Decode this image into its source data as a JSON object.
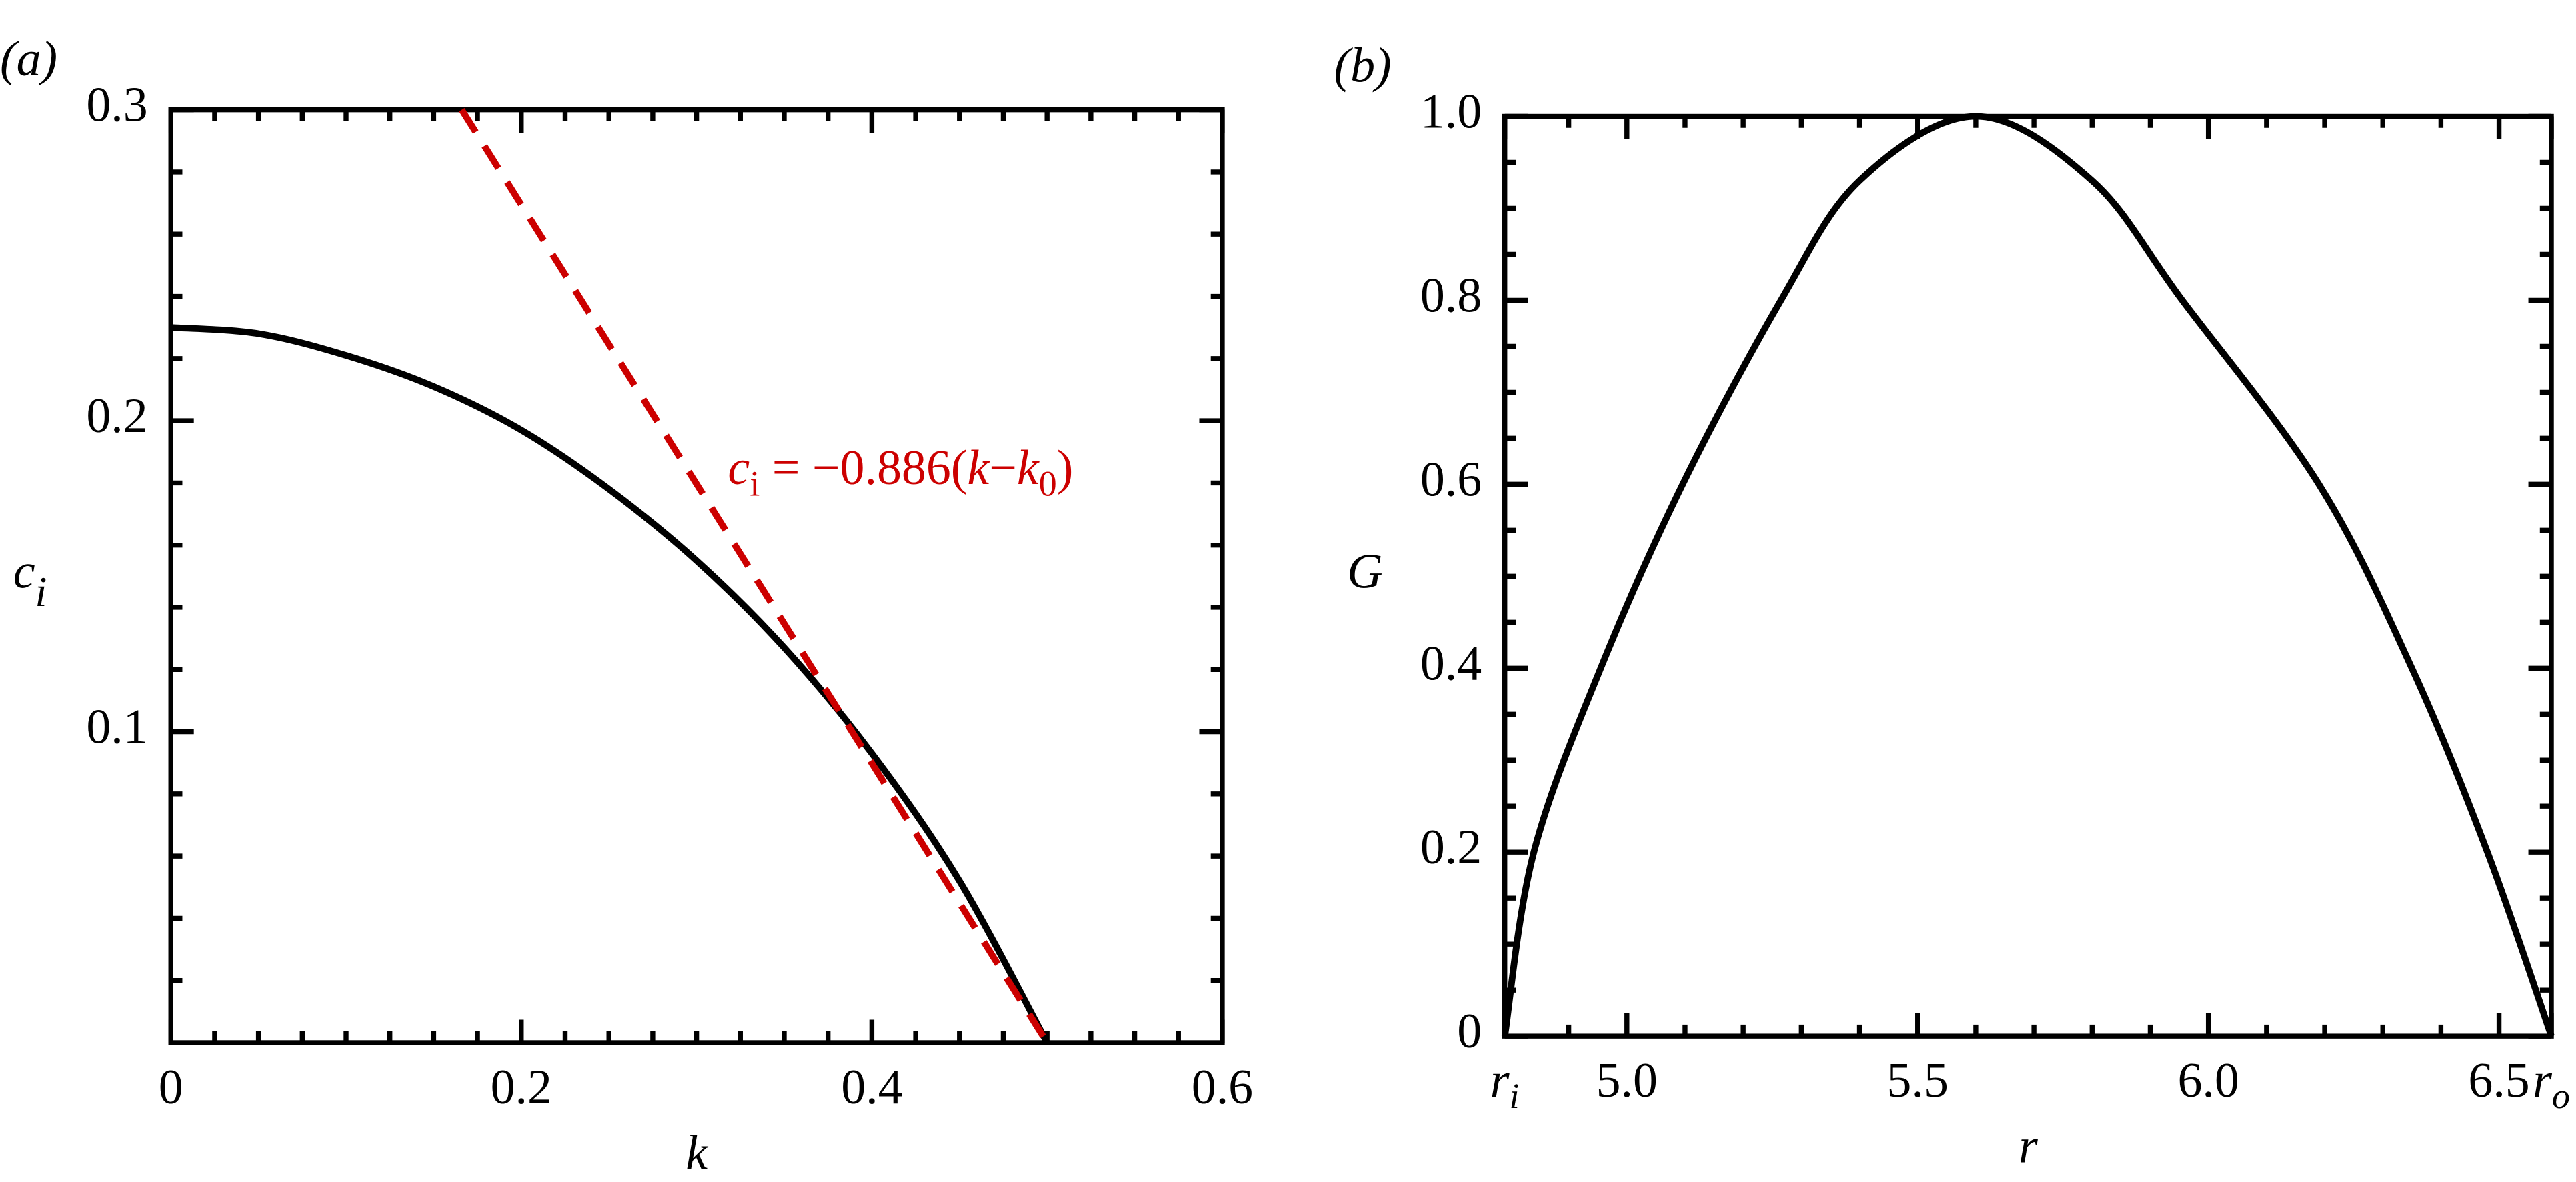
{
  "chart_data": [
    {
      "type": "line",
      "panel_label": "(a)",
      "xlabel": "k",
      "ylabel": {
        "text": "c",
        "sub": "i"
      },
      "xlim": [
        0,
        0.6
      ],
      "ylim": [
        0,
        0.3
      ],
      "xticks": [
        0,
        0.2,
        0.4,
        0.6
      ],
      "yticks": [
        0.1,
        0.2,
        0.3
      ],
      "xminor": [
        0.025,
        0.05,
        0.075,
        0.1,
        0.125,
        0.15,
        0.175,
        0.225,
        0.25,
        0.275,
        0.3,
        0.325,
        0.35,
        0.375,
        0.425,
        0.45,
        0.475,
        0.5,
        0.525,
        0.55,
        0.575
      ],
      "yminor": [
        0.02,
        0.04,
        0.06,
        0.08,
        0.12,
        0.14,
        0.16,
        0.18,
        0.22,
        0.24,
        0.26,
        0.28
      ],
      "series": [
        {
          "color": "#000000",
          "dashed": false,
          "x": [
            0,
            0.05,
            0.1,
            0.15,
            0.2,
            0.25,
            0.3,
            0.35,
            0.4,
            0.45,
            0.5
          ],
          "values": [
            0.23,
            0.228,
            0.221,
            0.211,
            0.197,
            0.178,
            0.155,
            0.127,
            0.093,
            0.052,
            0
          ]
        },
        {
          "color": "#cc0000",
          "dashed": true,
          "x": [
            0.166,
            0.5
          ],
          "values": [
            0.3,
            0
          ]
        }
      ],
      "annotation": {
        "color": "#cc0000",
        "parts": [
          {
            "text": "c",
            "style": "italic"
          },
          {
            "text": "i",
            "style": "sub"
          },
          {
            "text": " = −0.886(",
            "style": "normal"
          },
          {
            "text": "k",
            "style": "italic"
          },
          {
            "text": "−",
            "style": "normal"
          },
          {
            "text": "k",
            "style": "italic"
          },
          {
            "text": "0",
            "style": "sub"
          },
          {
            "text": ")",
            "style": "normal"
          }
        ]
      }
    },
    {
      "type": "line",
      "panel_label": "(b)",
      "xlabel": "r",
      "ylabel": {
        "text": "G"
      },
      "xlim": [
        4.79,
        6.59
      ],
      "ylim": [
        0,
        1
      ],
      "xticks": [
        {
          "value": 4.79,
          "label": "r",
          "sub": "i"
        },
        {
          "value": 5,
          "label": "5.0"
        },
        5.5,
        {
          "value": 6,
          "label": "6.0"
        },
        6.5,
        {
          "value": 6.59,
          "label": "r",
          "sub": "o"
        }
      ],
      "yticks": [
        0,
        0.2,
        0.4,
        0.6,
        0.8,
        {
          "value": 1,
          "label": "1.0"
        }
      ],
      "xminor": [
        4.9,
        5.1,
        5.2,
        5.3,
        5.4,
        5.6,
        5.7,
        5.8,
        5.9,
        6.1,
        6.2,
        6.3,
        6.4
      ],
      "yminor": [
        0.05,
        0.1,
        0.15,
        0.25,
        0.3,
        0.35,
        0.45,
        0.5,
        0.55,
        0.65,
        0.7,
        0.75,
        0.85,
        0.9,
        0.95
      ],
      "series": [
        {
          "color": "#000000",
          "dashed": false,
          "x": [
            4.79,
            4.84,
            4.955,
            5.096,
            5.265,
            5.4,
            5.6,
            5.8,
            5.955,
            6.19,
            6.35,
            6.48,
            6.59
          ],
          "values": [
            0,
            0.2,
            0.4,
            0.6,
            0.8,
            0.93,
            1,
            0.93,
            0.8,
            0.6,
            0.4,
            0.2,
            0
          ]
        }
      ]
    }
  ]
}
